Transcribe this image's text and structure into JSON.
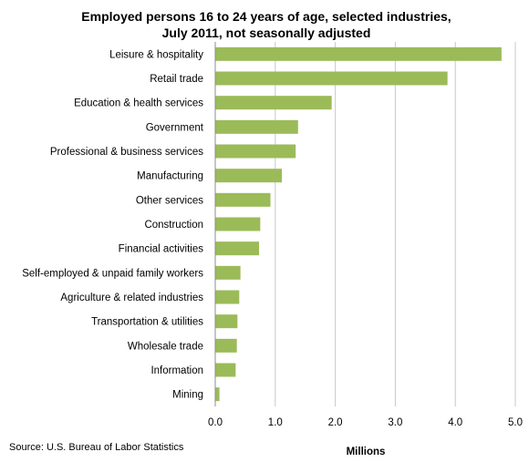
{
  "chart_data": {
    "type": "bar",
    "orientation": "horizontal",
    "title_lines": [
      "Employed persons 16 to 24 years of age, selected industries,",
      "July 2011, not seasonally adjusted"
    ],
    "categories": [
      "Leisure & hospitality",
      "Retail trade",
      "Education & health services",
      "Government",
      "Professional & business services",
      "Manufacturing",
      "Other services",
      "Construction",
      "Financial activities",
      "Self-employed & unpaid family workers",
      "Agriculture & related industries",
      "Transportation & utilities",
      "Wholesale trade",
      "Information",
      "Mining"
    ],
    "values": [
      4.77,
      3.87,
      1.94,
      1.38,
      1.34,
      1.11,
      0.92,
      0.75,
      0.73,
      0.42,
      0.4,
      0.37,
      0.36,
      0.34,
      0.07
    ],
    "xlabel": "Millions",
    "ylabel": "",
    "xlim": [
      0,
      5
    ],
    "xticks": [
      "0.0",
      "1.0",
      "2.0",
      "3.0",
      "4.0",
      "5.0"
    ],
    "grid": "vertical",
    "legend": "none",
    "bar_color": "#9bbb59",
    "source": "Source: U.S. Bureau of Labor Statistics"
  }
}
